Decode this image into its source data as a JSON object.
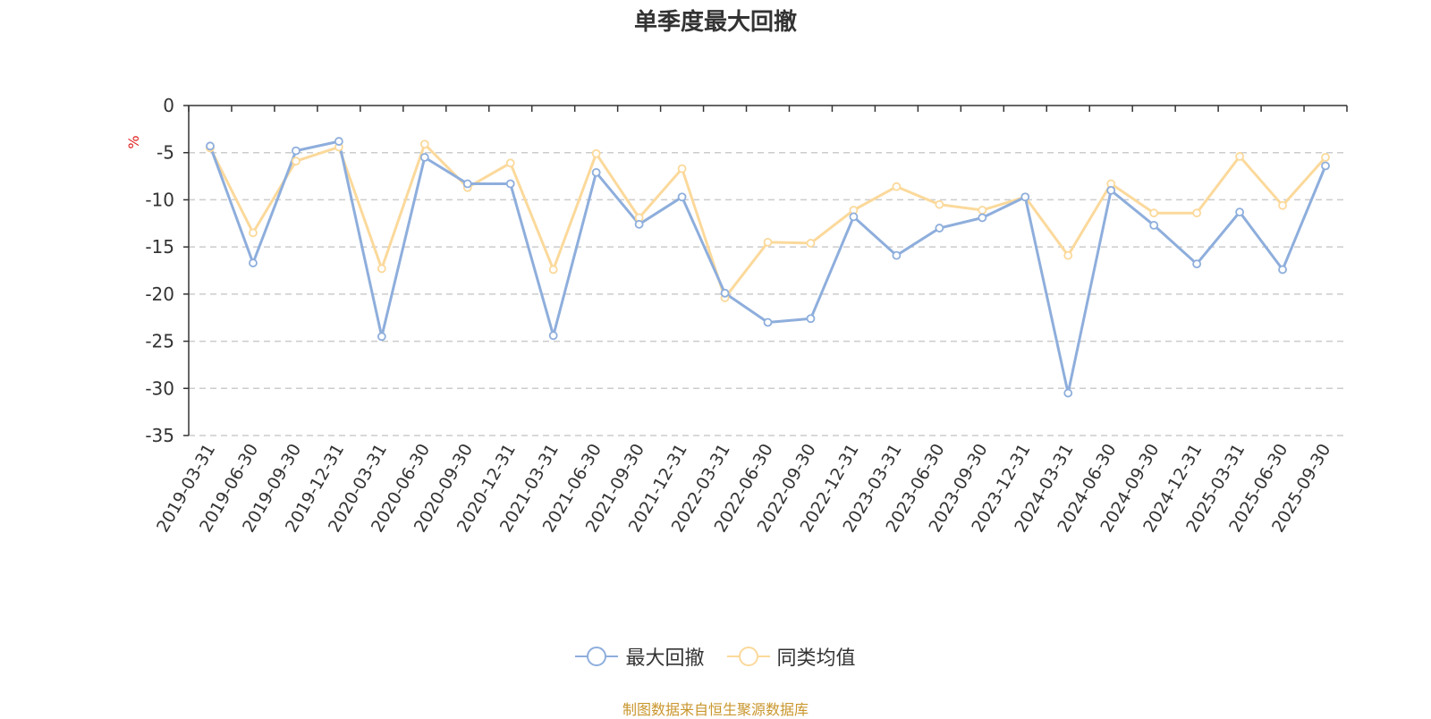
{
  "title": "单季度最大回撤",
  "source": "制图数据来自恒生聚源数据库",
  "colors": {
    "drawdown": "#8eaedc",
    "peer_avg": "#fbd99b",
    "unit": "#e02020",
    "axis": "#333333",
    "grid": "#cccccc"
  },
  "chart_data": {
    "type": "line",
    "title": "单季度最大回撤",
    "ylabel": "%",
    "ylim": [
      -35,
      0
    ],
    "yticks": [
      0,
      -5,
      -10,
      -15,
      -20,
      -25,
      -30,
      -35
    ],
    "grid": "horizontal dashed",
    "legend_position": "bottom",
    "categories": [
      "2019-03-31",
      "2019-06-30",
      "2019-09-30",
      "2019-12-31",
      "2020-03-31",
      "2020-06-30",
      "2020-09-30",
      "2020-12-31",
      "2021-03-31",
      "2021-06-30",
      "2021-09-30",
      "2021-12-31",
      "2022-03-31",
      "2022-06-30",
      "2022-09-30",
      "2022-12-31",
      "2023-03-31",
      "2023-06-30",
      "2023-09-30",
      "2023-12-31",
      "2024-03-31",
      "2024-06-30",
      "2024-09-30",
      "2024-12-31",
      "2025-03-31",
      "2025-06-30",
      "2025-09-30"
    ],
    "series": [
      {
        "name": "最大回撤",
        "color": "#8eaedc",
        "values": [
          -4.3,
          -16.7,
          -4.8,
          -3.8,
          -24.5,
          -5.5,
          -8.3,
          -8.3,
          -24.4,
          -7.1,
          -12.6,
          -9.7,
          -19.9,
          -23.0,
          -22.6,
          -11.8,
          -15.9,
          -13.0,
          -11.9,
          -9.7,
          -30.5,
          -9.0,
          -12.7,
          -16.8,
          -11.3,
          -17.4,
          -6.4
        ]
      },
      {
        "name": "同类均值",
        "color": "#fbd99b",
        "values": [
          -4.5,
          -13.5,
          -5.9,
          -4.4,
          -17.3,
          -4.1,
          -8.7,
          -6.1,
          -17.4,
          -5.1,
          -11.9,
          -6.7,
          -20.4,
          -14.5,
          -14.6,
          -11.1,
          -8.6,
          -10.5,
          -11.1,
          -9.7,
          -15.9,
          -8.3,
          -11.4,
          -11.4,
          -5.4,
          -10.6,
          -5.5
        ]
      }
    ]
  }
}
